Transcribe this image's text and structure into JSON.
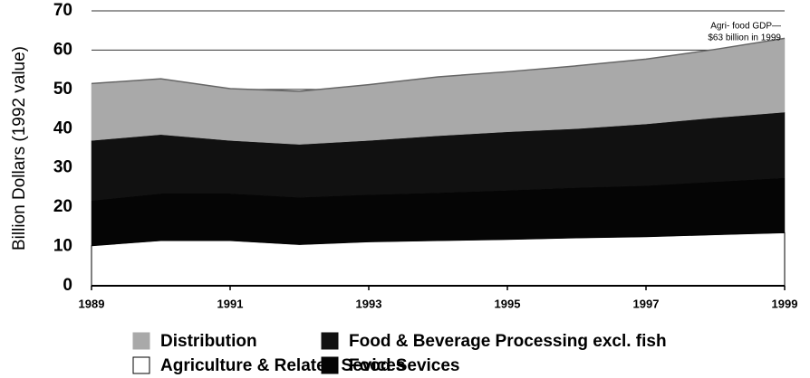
{
  "chart_data": {
    "type": "stacked_area",
    "y_label": "Billion Dollars (1992 value)",
    "annotation": [
      "Agri- food GDP—",
      "$63 billion in 1999"
    ],
    "x": [
      1989,
      1990,
      1991,
      1992,
      1993,
      1994,
      1995,
      1996,
      1997,
      1998,
      1999
    ],
    "xlim": [
      1989,
      1999
    ],
    "xticks": [
      1989,
      1991,
      1993,
      1995,
      1997,
      1999
    ],
    "ylim": [
      0,
      70
    ],
    "yticks": [
      0,
      10,
      20,
      30,
      40,
      50,
      60,
      70
    ],
    "grid": true,
    "series": [
      {
        "name": "Agriculture & Related Sevices",
        "color": "#ffffff",
        "values": [
          10.2,
          11.5,
          11.5,
          10.5,
          11.2,
          11.5,
          11.8,
          12.2,
          12.5,
          13,
          13.5
        ]
      },
      {
        "name": "Food Sevices",
        "color": "#050505",
        "values": [
          11.5,
          12,
          12,
          12,
          12,
          12.2,
          12.5,
          12.8,
          13,
          13.5,
          14
        ]
      },
      {
        "name": "Food & Beverage Processing excl. fish",
        "color": "#111111",
        "values": [
          15.3,
          15,
          13.5,
          13.5,
          13.8,
          14.5,
          14.9,
          15,
          15.7,
          16.3,
          16.7
        ]
      },
      {
        "name": "Distribution",
        "color": "#a9a9a9",
        "values": [
          14.5,
          14.2,
          13.2,
          13.5,
          14.2,
          15,
          15.3,
          16,
          16.5,
          17.4,
          18.8
        ]
      }
    ]
  }
}
